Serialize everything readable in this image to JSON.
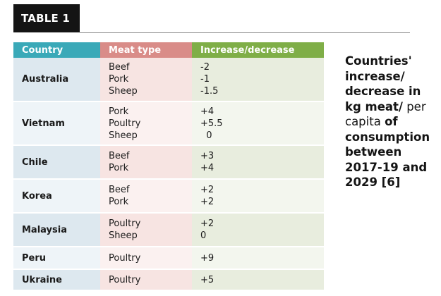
{
  "badge": "TABLE 1",
  "table": {
    "headers": [
      "Country",
      "Meat type",
      "Increase/decrease"
    ],
    "rows": [
      {
        "country": "Australia",
        "meat_types": [
          "Beef",
          "Pork",
          "Sheep"
        ],
        "changes": [
          "-2",
          "-1",
          "-1.5"
        ]
      },
      {
        "country": "Vietnam",
        "meat_types": [
          "Pork",
          "Poultry",
          "Sheep"
        ],
        "changes": [
          "+4",
          "+5.5",
          "  0"
        ]
      },
      {
        "country": "Chile",
        "meat_types": [
          "Beef",
          "Pork"
        ],
        "changes": [
          "+3",
          "+4"
        ]
      },
      {
        "country": "Korea",
        "meat_types": [
          "Beef",
          "Pork"
        ],
        "changes": [
          "+2",
          "+2"
        ]
      },
      {
        "country": "Malaysia",
        "meat_types": [
          "Poultry",
          "Sheep"
        ],
        "changes": [
          "+2",
          "0"
        ]
      },
      {
        "country": "Peru",
        "meat_types": [
          "Poultry"
        ],
        "changes": [
          "+9"
        ]
      },
      {
        "country": "Ukraine",
        "meat_types": [
          "Poultry"
        ],
        "changes": [
          "+5"
        ]
      }
    ]
  },
  "caption": {
    "bold_start": "Countries' increase/ decrease in kg meat/",
    "regular": " per capita ",
    "bold_end": "of consumption between 2017-19 and 2029 [6]"
  },
  "colors": {
    "badge_bg": "#141414",
    "country_header": "#3aa9b8",
    "meat_header": "#d98c88",
    "change_header": "#7fae47",
    "country_cell": "#dde8ef",
    "meat_cell": "#f7e4e2",
    "change_cell": "#e8edde"
  }
}
